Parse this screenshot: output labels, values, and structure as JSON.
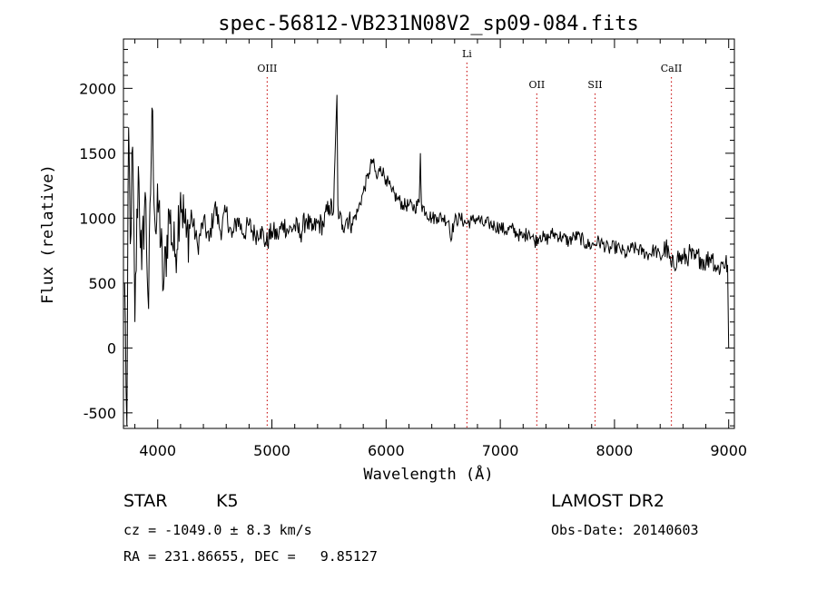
{
  "chart_data": {
    "type": "line",
    "title": "spec-56812-VB231N08V2_sp09-084.fits",
    "xlabel": "Wavelength (Å)",
    "ylabel": "Flux (relative)",
    "xlim": [
      3700,
      9050
    ],
    "ylim": [
      -620,
      2380
    ],
    "xticks": [
      4000,
      5000,
      6000,
      7000,
      8000,
      9000
    ],
    "yticks": [
      -500,
      0,
      500,
      1000,
      1500,
      2000
    ],
    "grid": false,
    "line_color": "#000000",
    "marker_color": "#cc2222",
    "series": [
      {
        "x": [
          3710,
          3730,
          3745,
          3760,
          3780,
          3800,
          3830,
          3860,
          3890,
          3920,
          3950,
          3980,
          4010,
          4050,
          4100,
          4150,
          4200,
          4250,
          4300,
          4350,
          4400,
          4450,
          4500,
          4550,
          4600,
          4650,
          4700,
          4750,
          4800,
          4850,
          4900,
          4950,
          5000,
          5050,
          5100,
          5150,
          5200,
          5250,
          5300,
          5350,
          5400,
          5450,
          5500,
          5540,
          5570,
          5578,
          5590,
          5620,
          5660,
          5700,
          5750,
          5800,
          5850,
          5880,
          5920,
          5950,
          6000,
          6050,
          6100,
          6150,
          6200,
          6250,
          6290,
          6300,
          6310,
          6350,
          6400,
          6450,
          6500,
          6550,
          6563,
          6600,
          6650,
          6700,
          6750,
          6800,
          6850,
          6900,
          6950,
          7000,
          7050,
          7100,
          7150,
          7200,
          7250,
          7300,
          7350,
          7400,
          7450,
          7500,
          7550,
          7600,
          7650,
          7700,
          7750,
          7800,
          7850,
          7900,
          7950,
          8000,
          8050,
          8100,
          8150,
          8200,
          8250,
          8300,
          8350,
          8400,
          8450,
          8500,
          8550,
          8600,
          8650,
          8700,
          8750,
          8800,
          8850,
          8900,
          8950,
          8990,
          9000
        ],
        "values": [
          500,
          -600,
          1700,
          800,
          1550,
          200,
          1400,
          600,
          1200,
          300,
          1850,
          900,
          1100,
          450,
          1050,
          700,
          1200,
          850,
          1000,
          780,
          980,
          820,
          1100,
          900,
          1050,
          850,
          1000,
          880,
          950,
          870,
          920,
          800,
          900,
          860,
          960,
          900,
          940,
          880,
          1000,
          900,
          960,
          950,
          1100,
          1050,
          1950,
          1100,
          1000,
          950,
          1000,
          960,
          1050,
          1200,
          1350,
          1450,
          1300,
          1400,
          1300,
          1200,
          1150,
          1100,
          1100,
          1080,
          1120,
          1500,
          1100,
          1050,
          1000,
          1010,
          1000,
          980,
          850,
          980,
          1000,
          960,
          980,
          1000,
          950,
          960,
          940,
          930,
          900,
          920,
          880,
          850,
          900,
          820,
          870,
          830,
          880,
          870,
          850,
          820,
          860,
          850,
          800,
          790,
          820,
          800,
          760,
          780,
          760,
          720,
          770,
          760,
          740,
          720,
          760,
          700,
          780,
          620,
          700,
          680,
          720,
          680,
          700,
          660,
          720,
          600,
          660,
          640,
          0
        ]
      }
    ],
    "markers": [
      {
        "label": "OIII",
        "x": 4959
      },
      {
        "label": "Li",
        "x": 6708
      },
      {
        "label": "OII",
        "x": 7320
      },
      {
        "label": "SII",
        "x": 7830
      },
      {
        "label": "CaII",
        "x": 8498
      }
    ]
  },
  "info": {
    "object_type": "STAR",
    "subclass": "K5",
    "survey": "LAMOST DR2",
    "cz_line": "cz = -1049.0 ± 8.3 km/s",
    "obs_date_line": "Obs-Date: 20140603",
    "radec_line": "RA = 231.86655, DEC =   9.85127"
  }
}
